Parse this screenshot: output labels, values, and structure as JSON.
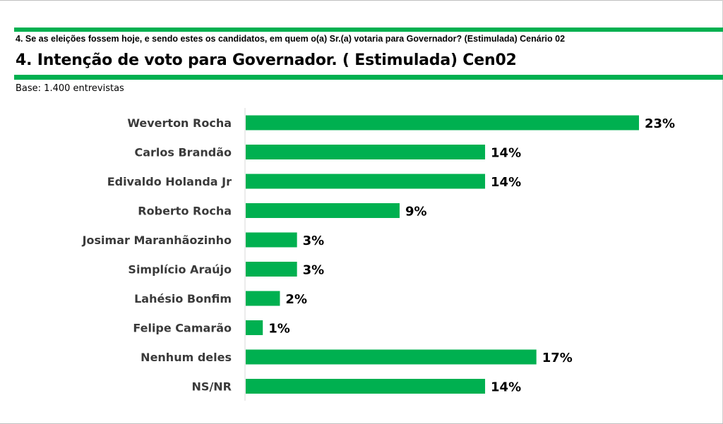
{
  "header": {
    "question": "4. Se as eleições fossem hoje, e sendo estes os candidatos, em quem o(a) Sr.(a) votaria para Governador? (Estimulada) Cenário 02",
    "title": "4. Intenção de voto para Governador. ( Estimulada) Cen02",
    "base": "Base: 1.400 entrevistas"
  },
  "colors": {
    "accent": "#00b050",
    "bar": "#00b050"
  },
  "chart_data": {
    "type": "bar",
    "orientation": "horizontal",
    "title": "4. Intenção de voto para Governador. ( Estimulada) Cen02",
    "xlabel": "",
    "ylabel": "",
    "unit": "%",
    "grid": false,
    "legend": "none",
    "xlim": [
      0,
      23
    ],
    "categories": [
      "Weverton Rocha",
      "Carlos Brandão",
      "Edivaldo Holanda Jr",
      "Roberto Rocha",
      "Josimar Maranhãozinho",
      "Simplício Araújo",
      "Lahésio Bonfim",
      "Felipe Camarão",
      "Nenhum deles",
      "NS/NR"
    ],
    "values": [
      23,
      14,
      14,
      9,
      3,
      3,
      2,
      1,
      17,
      14
    ],
    "value_labels": [
      "23%",
      "14%",
      "14%",
      "9%",
      "3%",
      "3%",
      "2%",
      "1%",
      "17%",
      "14%"
    ]
  }
}
